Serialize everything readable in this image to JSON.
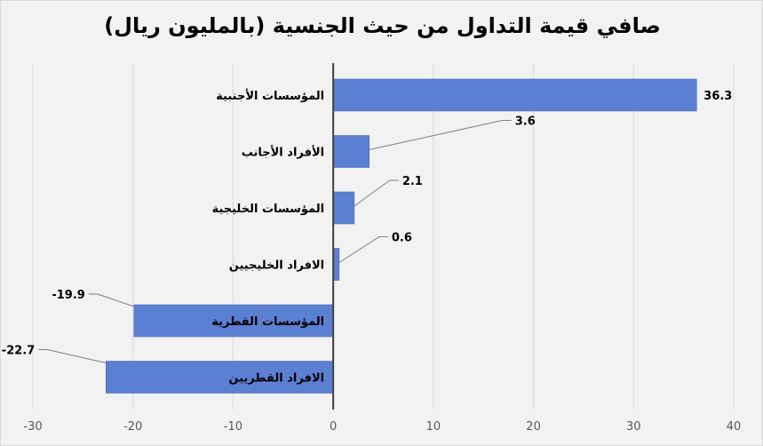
{
  "chart_data": {
    "type": "bar",
    "orientation": "horizontal",
    "title": "صافي قيمة التداول من حيث الجنسية (بالمليون ريال)",
    "categories": [
      "المؤسسات الأجنبية",
      "الأفراد الأجانب",
      "المؤسسات الخليجية",
      "الافراد الخليجيين",
      "المؤسسات القطرية",
      "الافراد القطريين"
    ],
    "values": [
      36.3,
      3.6,
      2.1,
      0.6,
      -19.9,
      -22.7
    ],
    "value_labels": [
      "36.3",
      "3.6",
      "2.1",
      "0.6",
      "-19.9",
      "-22.7"
    ],
    "xlim": [
      -30,
      40
    ],
    "xticks": [
      "-30",
      "-20",
      "-10",
      "0",
      "10",
      "20",
      "30",
      "40"
    ],
    "grid": true,
    "bar_color": "#5b7fd1",
    "legend": "none"
  }
}
